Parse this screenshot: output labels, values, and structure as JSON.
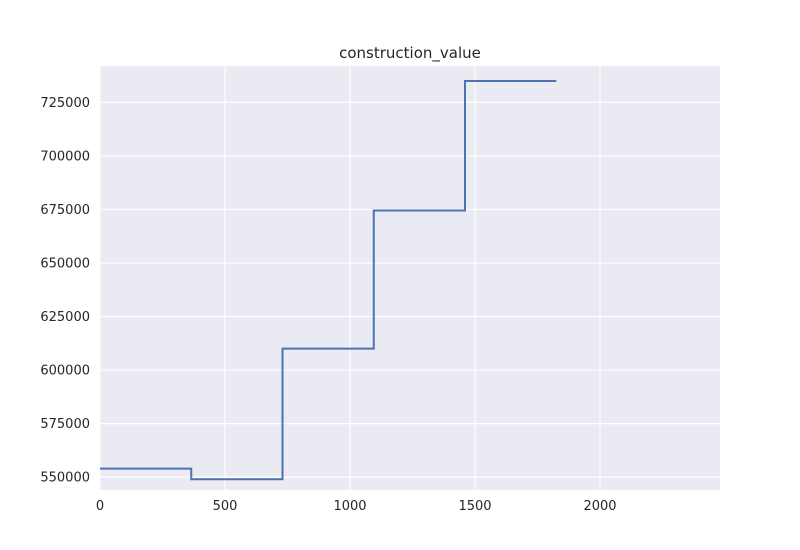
{
  "chart_data": {
    "type": "line",
    "title": "construction_value",
    "xlabel": "",
    "ylabel": "",
    "xlim": [
      0,
      2480
    ],
    "ylim": [
      544000,
      742000
    ],
    "x_ticks": [
      0,
      500,
      1000,
      1500,
      2000
    ],
    "x_tick_labels": [
      "0",
      "500",
      "1000",
      "1500",
      "2000"
    ],
    "y_ticks": [
      550000,
      575000,
      600000,
      625000,
      650000,
      675000,
      700000,
      725000
    ],
    "y_tick_labels": [
      "550000",
      "575000",
      "600000",
      "625000",
      "650000",
      "675000",
      "700000",
      "725000"
    ],
    "grid": true,
    "legend": "none",
    "step": true,
    "series": [
      {
        "color": "#4c72b0",
        "x": [
          0,
          365,
          365,
          730,
          730,
          1095,
          1095,
          1460,
          1460,
          1825
        ],
        "y": [
          554000,
          554000,
          549000,
          549000,
          610000,
          610000,
          674500,
          674500,
          735000,
          735000
        ]
      }
    ]
  },
  "style": {
    "plot_background": "#eaeaf2",
    "grid_color": "#ffffff",
    "page_background": "#ffffff"
  }
}
